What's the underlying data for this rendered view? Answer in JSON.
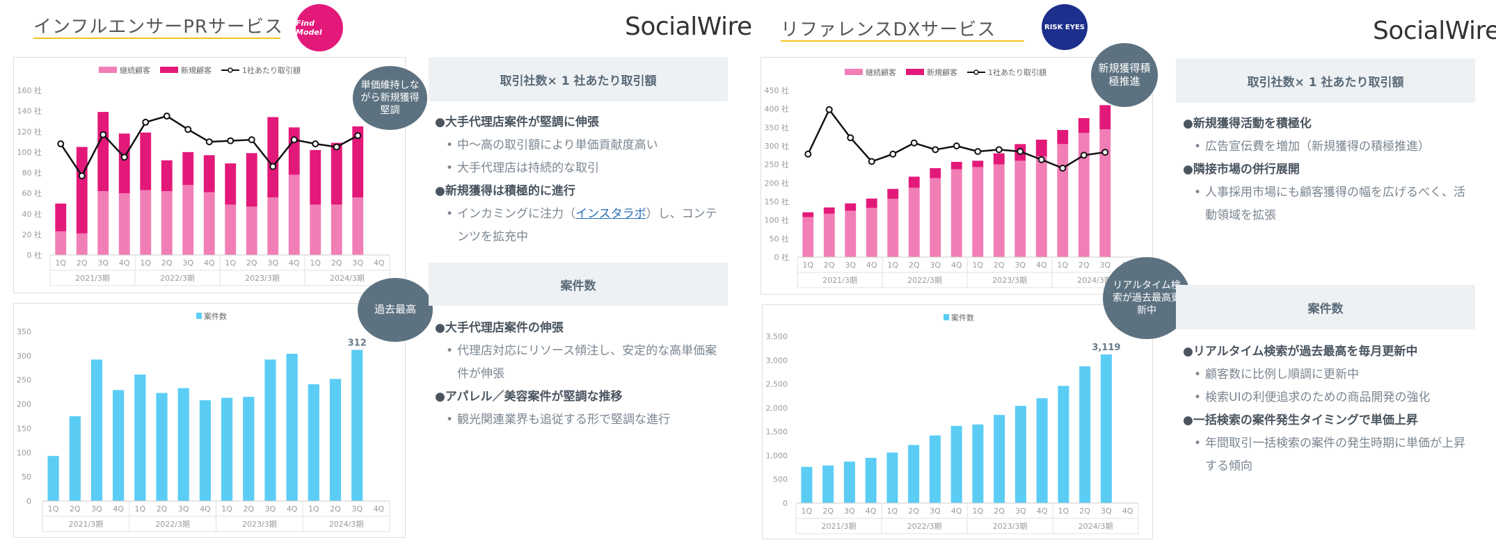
{
  "colors": {
    "continuing": "#f27eb6",
    "new": "#e3197a",
    "perclient": "#111111",
    "cases": "#5bcdf5",
    "accent": "#f0c419",
    "bubble": "#5d7281"
  },
  "left": {
    "title": "インフルエンサーPRサービス",
    "badge": "Find Model",
    "brand": "SocialWire",
    "chart1": {
      "chart_data": {
        "type": "bar",
        "stacked": true,
        "categories": [
          "1Q",
          "2Q",
          "3Q",
          "4Q",
          "1Q",
          "2Q",
          "3Q",
          "4Q",
          "1Q",
          "2Q",
          "3Q",
          "4Q",
          "1Q",
          "2Q",
          "3Q",
          "4Q"
        ],
        "groups": [
          "2021/3期",
          "2022/3期",
          "2023/3期",
          "2024/3期"
        ],
        "series": [
          {
            "name": "継続顧客",
            "values": [
              23,
              21,
              62,
              60,
              63,
              62,
              68,
              61,
              49,
              47,
              56,
              78,
              49,
              49,
              56,
              null
            ]
          },
          {
            "name": "新規顧客",
            "values": [
              27,
              84,
              77,
              58,
              56,
              30,
              32,
              36,
              40,
              52,
              78,
              46,
              53,
              60,
              69,
              null
            ]
          },
          {
            "name": "1社あたり取引額",
            "type": "line",
            "values": [
              108,
              77,
              117,
              95,
              129,
              135,
              122,
              110,
              111,
              112,
              86,
              112,
              108,
              105,
              116,
              null
            ]
          }
        ],
        "yticks": [
          "160 社",
          "140 社",
          "120 社",
          "100 社",
          "80 社",
          "60 社",
          "40 社",
          "20 社",
          "0 社"
        ],
        "ylim": [
          0,
          160
        ]
      }
    },
    "bubble1": "単価維持しながら新規獲得堅調",
    "chart2": {
      "chart_data": {
        "type": "bar",
        "categories": [
          "1Q",
          "2Q",
          "3Q",
          "4Q",
          "1Q",
          "2Q",
          "3Q",
          "4Q",
          "1Q",
          "2Q",
          "3Q",
          "4Q",
          "1Q",
          "2Q",
          "3Q",
          "4Q"
        ],
        "groups": [
          "2021/3期",
          "2022/3期",
          "2023/3期",
          "2024/3期"
        ],
        "series": [
          {
            "name": "案件数",
            "values": [
              93,
              175,
              292,
              229,
              261,
              223,
              233,
              208,
              213,
              215,
              292,
              304,
              241,
              252,
              312,
              null
            ]
          }
        ],
        "yticks": [
          "350",
          "300",
          "250",
          "200",
          "150",
          "100",
          "50",
          "0"
        ],
        "ylim": [
          0,
          350
        ],
        "last_label": "312"
      }
    },
    "bubble2": "過去最高",
    "panel1": {
      "header": "取引社数× 1 社あたり取引額",
      "h1": "大手代理店案件が堅調に伸張",
      "i1": "中〜高の取引額により単価貢献度高い",
      "i2": "大手代理店は持続的な取引",
      "h2": "新規獲得は積極的に進行",
      "i3a": "インカミングに注力（",
      "i3link": "インスタラボ",
      "i3b": "）し、コンテンツを拡充中"
    },
    "panel2": {
      "header": "案件数",
      "h1": "大手代理店案件の伸張",
      "i1": "代理店対応にリソース傾注し、安定的な高単価案件が伸張",
      "h2": "アパレル／美容案件が堅調な推移",
      "i2": "観光関連業界も追従する形で堅調な進行"
    }
  },
  "right": {
    "title": "リファレンスDXサービス",
    "badge": "RISK EYES",
    "brand": "SocialWire",
    "chart1": {
      "chart_data": {
        "type": "bar",
        "stacked": true,
        "categories": [
          "1Q",
          "2Q",
          "3Q",
          "4Q",
          "1Q",
          "2Q",
          "3Q",
          "4Q",
          "1Q",
          "2Q",
          "3Q",
          "4Q",
          "1Q",
          "2Q",
          "3Q",
          "4Q"
        ],
        "groups": [
          "2021/3期",
          "2022/3期",
          "2023/3期",
          "2024/3期"
        ],
        "series": [
          {
            "name": "継続顧客",
            "values": [
              108,
              117,
              125,
              133,
              157,
              187,
              213,
              237,
              243,
              250,
              260,
              272,
              305,
              335,
              345,
              null
            ]
          },
          {
            "name": "新規顧客",
            "values": [
              13,
              17,
              20,
              25,
              27,
              30,
              27,
              20,
              17,
              30,
              45,
              45,
              38,
              40,
              65,
              null
            ]
          },
          {
            "name": "1社あたり取引額",
            "type": "line",
            "values": [
              278,
              398,
              322,
              258,
              278,
              308,
              290,
              300,
              285,
              290,
              285,
              263,
              240,
              275,
              283,
              null
            ]
          }
        ],
        "yticks": [
          "450 社",
          "400 社",
          "350 社",
          "300 社",
          "250 社",
          "200 社",
          "150 社",
          "100 社",
          "50 社",
          "0 社"
        ],
        "ylim": [
          0,
          450
        ]
      }
    },
    "bubble1": "新規獲得積極推進",
    "chart2": {
      "chart_data": {
        "type": "bar",
        "categories": [
          "1Q",
          "2Q",
          "3Q",
          "4Q",
          "1Q",
          "2Q",
          "3Q",
          "4Q",
          "1Q",
          "2Q",
          "3Q",
          "4Q",
          "1Q",
          "2Q",
          "3Q",
          "4Q"
        ],
        "groups": [
          "2021/3期",
          "2022/3期",
          "2023/3期",
          "2024/3期"
        ],
        "series": [
          {
            "name": "案件数",
            "values": [
              760,
              790,
              870,
              950,
              1060,
              1220,
              1420,
              1620,
              1650,
              1850,
              2040,
              2200,
              2460,
              2870,
              3119,
              null
            ]
          }
        ],
        "yticks": [
          "3,500",
          "3,000",
          "2,500",
          "2,000",
          "1,500",
          "1,000",
          "500",
          "0"
        ],
        "ylim": [
          0,
          3500
        ],
        "last_label": "3,119"
      }
    },
    "bubble2": "リアルタイム検索が過去最高更新中",
    "panel1": {
      "header": "取引社数× 1 社あたり取引額",
      "h1": "新規獲得活動を積極化",
      "i1": "広告宣伝費を増加（新規獲得の積極推進）",
      "h2": "隣接市場の併行展開",
      "i2": "人事採用市場にも顧客獲得の幅を広げるべく、活動領域を拡張"
    },
    "panel2": {
      "header": "案件数",
      "h1": "リアルタイム検索が過去最高を毎月更新中",
      "i1": "顧客数に比例し順調に更新中",
      "i2": "検索UIの利便追求のための商品開発の強化",
      "h2": "一括検索の案件発生タイミングで単価上昇",
      "i3": "年間取引一括検索の案件の発生時期に単価が上昇する傾向"
    }
  }
}
